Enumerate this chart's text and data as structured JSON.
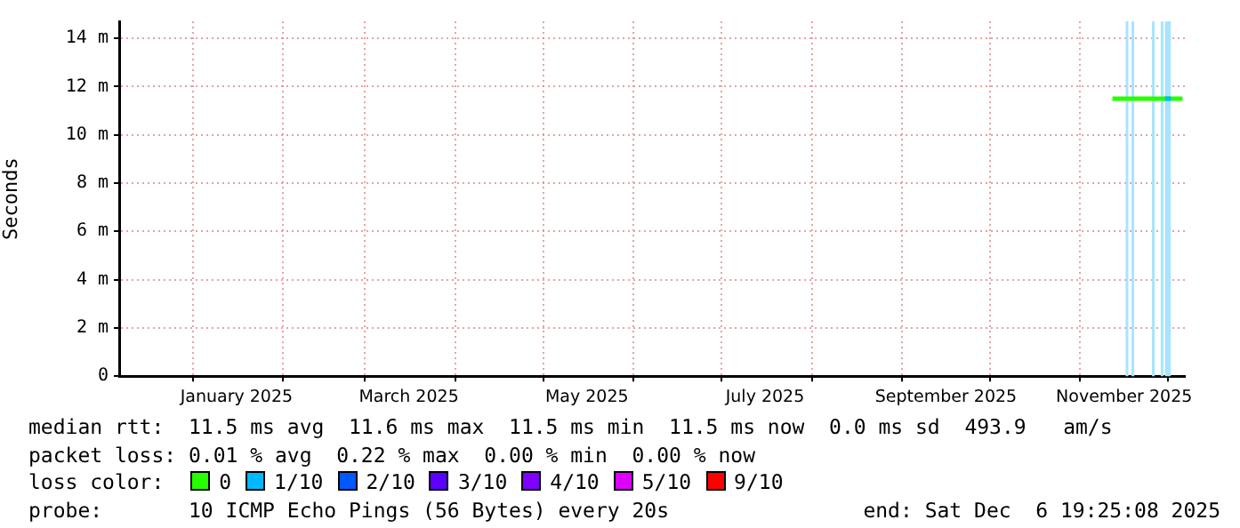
{
  "chart_data": {
    "type": "line",
    "ylabel": "Seconds",
    "x": [
      "2025-11-12",
      "2025-11-15",
      "2025-11-18",
      "2025-11-21",
      "2025-11-24",
      "2025-11-27",
      "2025-11-30",
      "2025-12-01",
      "2025-12-02",
      "2025-12-04",
      "2025-12-06"
    ],
    "series": [
      {
        "name": "0",
        "color": "#26ff00",
        "values": [
          11.5,
          11.5,
          11.5,
          11.5,
          11.5,
          11.5,
          11.5,
          11.5,
          11.5,
          11.5,
          11.5
        ]
      },
      {
        "name": "1/10",
        "color": "#00b8ff",
        "values": [
          null,
          null,
          null,
          null,
          null,
          null,
          11.5,
          11.5,
          11.5,
          null,
          null
        ]
      },
      {
        "name": "2/10",
        "color": "#0059ff",
        "values": [
          null,
          null,
          null,
          null,
          null,
          null,
          null,
          null,
          null,
          null,
          null
        ]
      },
      {
        "name": "3/10",
        "color": "#5e00ff",
        "values": [
          null,
          null,
          null,
          null,
          null,
          null,
          null,
          null,
          null,
          null,
          null
        ]
      },
      {
        "name": "4/10",
        "color": "#7e00ff",
        "values": [
          null,
          null,
          null,
          null,
          null,
          null,
          null,
          null,
          null,
          null,
          null
        ]
      },
      {
        "name": "5/10",
        "color": "#dd00ff",
        "values": [
          null,
          null,
          null,
          null,
          null,
          null,
          null,
          null,
          null,
          null,
          null
        ]
      },
      {
        "name": "9/10",
        "color": "#ff0000",
        "values": [
          null,
          null,
          null,
          null,
          null,
          null,
          null,
          null,
          null,
          null,
          null
        ]
      }
    ],
    "xlim": [
      "2024-12-06T19:25",
      "2025-12-06T19:25"
    ],
    "xticks": [
      {
        "value": "2025-01-01",
        "label": null
      },
      {
        "value": "2025-01-16",
        "label": "January 2025"
      },
      {
        "value": "2025-02-01",
        "label": null
      },
      {
        "value": "2025-03-01",
        "label": null
      },
      {
        "value": "2025-03-16",
        "label": "March 2025"
      },
      {
        "value": "2025-04-01",
        "label": null
      },
      {
        "value": "2025-05-01",
        "label": null
      },
      {
        "value": "2025-05-16",
        "label": "May 2025"
      },
      {
        "value": "2025-06-01",
        "label": null
      },
      {
        "value": "2025-07-01",
        "label": null
      },
      {
        "value": "2025-07-16",
        "label": "July 2025"
      },
      {
        "value": "2025-08-01",
        "label": null
      },
      {
        "value": "2025-09-01",
        "label": null
      },
      {
        "value": "2025-09-16",
        "label": "September 2025"
      },
      {
        "value": "2025-10-01",
        "label": null
      },
      {
        "value": "2025-11-01",
        "label": null
      },
      {
        "value": "2025-11-16",
        "label": "November 2025"
      },
      {
        "value": "2025-12-01",
        "label": null
      }
    ],
    "ylim": [
      0,
      14.7
    ],
    "yticks": [
      0,
      {
        "value": 2,
        "label": "2 m"
      },
      {
        "value": 4,
        "label": "4 m"
      },
      {
        "value": 6,
        "label": "6 m"
      },
      {
        "value": 8,
        "label": "8 m"
      },
      {
        "value": 10,
        "label": "10 m"
      },
      {
        "value": 12,
        "label": "12 m"
      },
      {
        "value": 14,
        "label": "14 m"
      }
    ],
    "ref_lines": [
      {
        "axis": "x",
        "value": "2025-11-17",
        "color": "#a8e4ff"
      },
      {
        "axis": "x",
        "value": "2025-11-19",
        "color": "#a8e4ff"
      },
      {
        "axis": "x",
        "value": "2025-11-26",
        "color": "#a8e4ff"
      },
      {
        "axis": "x",
        "value": "2025-11-29",
        "color": "#a8e4ff"
      }
    ],
    "bands": [
      {
        "axis": "x",
        "from": "2025-11-30",
        "to": "2025-12-02",
        "color": "#a8e4ff"
      }
    ],
    "grid": true,
    "marker": "none",
    "line_style": "solid",
    "legend": "bottom",
    "legend_title": "loss color:",
    "annotations": [
      "median rtt:  11.5 ms avg  11.6 ms max  11.5 ms min  11.5 ms now  0.0 ms sd  493.9   am/s",
      "packet loss: 0.01 % avg  0.22 % max  0.00 % min  0.00 % now",
      "probe:       10 ICMP Echo Pings (56 Bytes) every 20s",
      "end: Sat Dec  6 19:25:08 2025"
    ]
  }
}
